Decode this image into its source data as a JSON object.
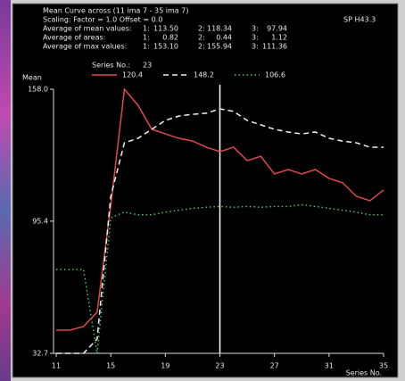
{
  "header": {
    "title": "Mean Curve across (11 ima 7 - 35 ima 7)",
    "scaling": "Scaling:  Factor = 1.0   Offset = 0.0",
    "id": "SP H43.3",
    "stats": [
      {
        "label": "Average of mean values:",
        "cells": [
          "1:",
          "113.50",
          "2:",
          "118.34",
          "3:",
          "97.94"
        ]
      },
      {
        "label": "Average of areas:",
        "cells": [
          "1:",
          "0.82",
          "2:",
          "0.44",
          "3:",
          "1.12"
        ]
      },
      {
        "label": "Average of max values:",
        "cells": [
          "1:",
          "153.10",
          "2:",
          "155.94",
          "3:",
          "111.36"
        ]
      }
    ],
    "series_label": "Series No.:"
  },
  "chart_data": {
    "type": "line",
    "ylabel": "Mean",
    "xlabel": "Series No.",
    "selected_series": 23,
    "x": [
      11,
      12,
      13,
      14,
      15,
      16,
      17,
      18,
      19,
      20,
      21,
      22,
      23,
      24,
      25,
      26,
      27,
      28,
      29,
      30,
      31,
      32,
      33,
      34,
      35
    ],
    "xlim": [
      11,
      35
    ],
    "xticks": [
      11,
      15,
      19,
      23,
      27,
      31,
      35
    ],
    "ylim": [
      32.7,
      158.0
    ],
    "yticks": [
      {
        "value": 158.0,
        "label": "158.0"
      },
      95.4,
      32.7
    ],
    "series": [
      {
        "name": "120.4",
        "color": "#e04848",
        "dash": "none",
        "values": [
          43.7,
          43.7,
          45.4,
          52.2,
          102.9,
          158.0,
          150.4,
          139.0,
          136.8,
          134.7,
          133.4,
          130.5,
          128.4,
          130.5,
          124.1,
          126.2,
          117.8,
          119.9,
          117.8,
          119.9,
          115.7,
          113.6,
          107.2,
          105.1,
          110.2
        ]
      },
      {
        "name": "148.2",
        "color": "#f0f0f0",
        "dash": "6 4",
        "values": [
          32.7,
          32.7,
          32.7,
          39.5,
          107.2,
          132.6,
          134.7,
          139.0,
          143.2,
          145.3,
          146.1,
          146.6,
          148.7,
          147.5,
          143.2,
          141.1,
          139.0,
          137.7,
          136.8,
          137.7,
          134.7,
          133.4,
          132.6,
          130.5,
          130.5
        ]
      },
      {
        "name": "106.6",
        "color": "#4cc070",
        "dash": "1.5 3",
        "values": [
          72.5,
          72.5,
          72.5,
          32.7,
          97.0,
          99.7,
          98.4,
          98.4,
          99.7,
          100.6,
          101.5,
          102.0,
          102.4,
          102.0,
          102.4,
          102.0,
          102.4,
          102.4,
          103.2,
          102.4,
          101.5,
          100.6,
          99.7,
          98.4,
          98.4
        ]
      }
    ]
  }
}
